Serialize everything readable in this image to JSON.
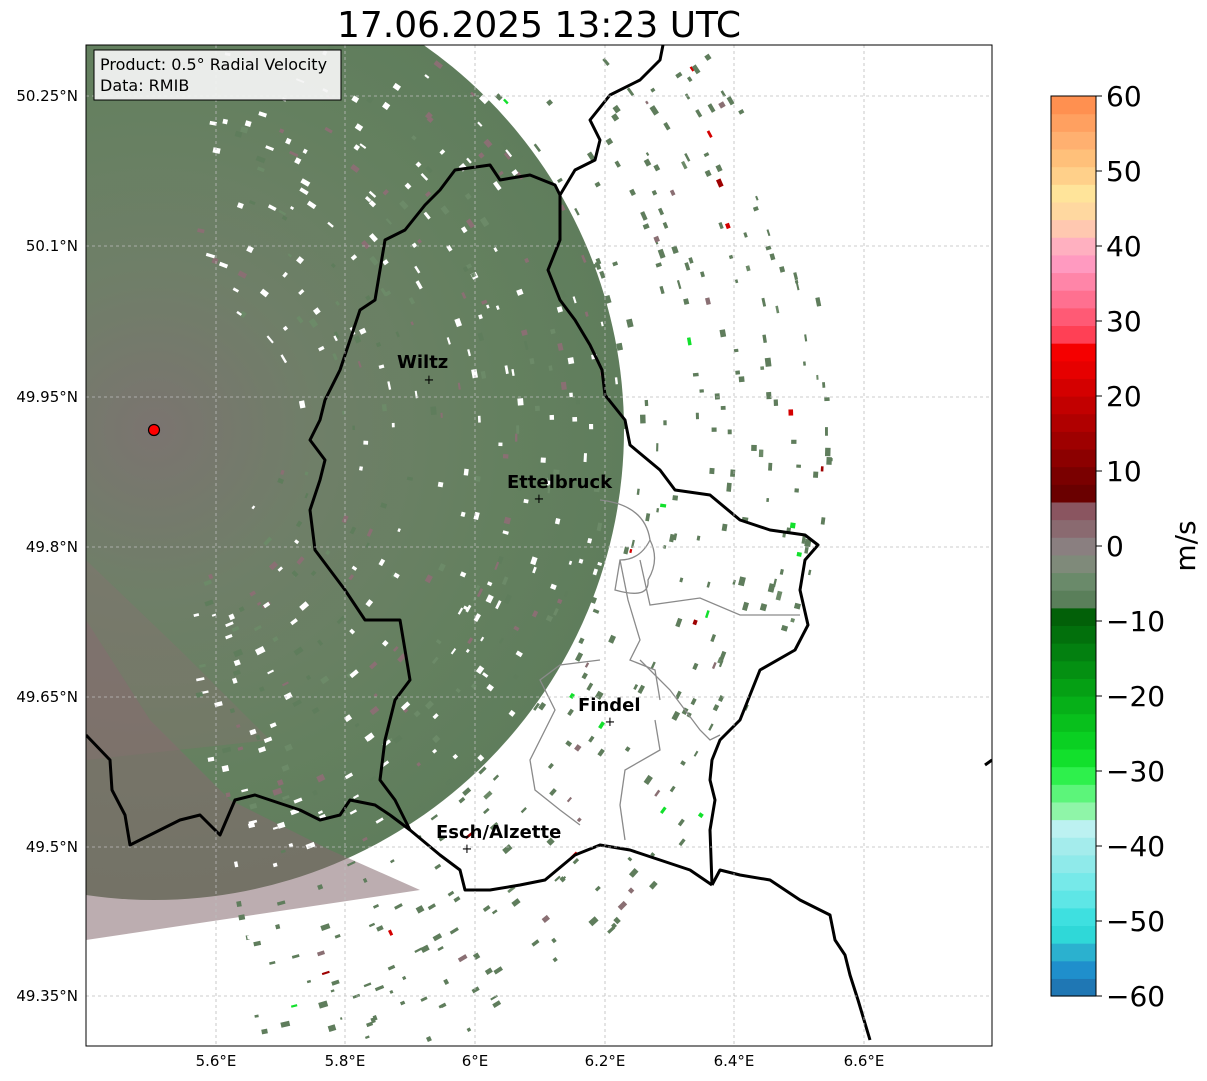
{
  "title": "17.06.2025 13:23 UTC",
  "info_box": {
    "line1": "Product: 0.5° Radial Velocity",
    "line2": "Data: RMIB"
  },
  "axes": {
    "x_ticks": [
      "5.6°E",
      "5.8°E",
      "6°E",
      "6.2°E",
      "6.4°E",
      "6.6°E"
    ],
    "y_ticks": [
      "50.25°N",
      "50.1°N",
      "49.95°N",
      "49.8°N",
      "49.65°N",
      "49.5°N",
      "49.35°N"
    ]
  },
  "cities": [
    {
      "name": "Wiltz"
    },
    {
      "name": "Ettelbruck"
    },
    {
      "name": "Findel"
    },
    {
      "name": "Esch/Alzette"
    }
  ],
  "colorbar": {
    "label": "m/s",
    "ticks": [
      "60",
      "50",
      "40",
      "30",
      "20",
      "10",
      "0",
      "−10",
      "−20",
      "−30",
      "−40",
      "−50",
      "−60"
    ],
    "colors": [
      "#1f77b4",
      "#1f8fcc",
      "#2bb1cf",
      "#2fd8d8",
      "#3ee0e0",
      "#5ee6e6",
      "#76e9e9",
      "#8feaea",
      "#a4ecec",
      "#bcf1f1",
      "#8ff5a8",
      "#5cf57a",
      "#2ef04c",
      "#12e02c",
      "#0ad022",
      "#08c01c",
      "#06b018",
      "#05a014",
      "#049012",
      "#038010",
      "#02700c",
      "#026008",
      "#5a7f5a",
      "#6a8a6a",
      "#7f8a7a",
      "#8a7f80",
      "#8a6a70",
      "#8a5560",
      "#6a0000",
      "#7a0000",
      "#8c0000",
      "#9e0000",
      "#b00000",
      "#c20000",
      "#d40000",
      "#e60000",
      "#f50000",
      "#ff4055",
      "#ff5a75",
      "#ff7090",
      "#ff85a8",
      "#ff9ac0",
      "#ffb0c0",
      "#ffc8b0",
      "#ffd8a0",
      "#ffe49a",
      "#ffd08a",
      "#ffc07a",
      "#ffb070",
      "#ffa060",
      "#ff9050"
    ]
  },
  "radar_site": {
    "color": "#ff0000"
  }
}
